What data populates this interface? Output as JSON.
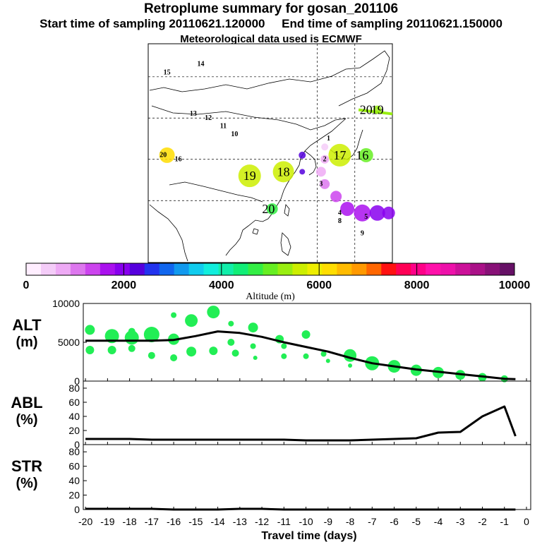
{
  "header": {
    "title": "Retroplume summary for gosan_201106",
    "start_time": "Start time of sampling 20110621.120000",
    "end_time": "End time of sampling 20110621.150000",
    "meteo": "Meteorological data used is ECMWF"
  },
  "colors": {
    "plume_green": "#22ee55",
    "line": "#000000",
    "gradient": [
      "#ffeeff",
      "#f4ccf8",
      "#eeaaf5",
      "#dd77ee",
      "#cc44ee",
      "#aa11ee",
      "#8800ee",
      "#5500dd",
      "#2233ee",
      "#1166ee",
      "#1199ee",
      "#11ccee",
      "#11eedd",
      "#11eeaa",
      "#11ee77",
      "#33ee44",
      "#66ee22",
      "#99ee11",
      "#ccee00",
      "#eeee00",
      "#ffdd00",
      "#ffbb00",
      "#ff9900",
      "#ff6600",
      "#ff1111",
      "#ff0055",
      "#ff0088",
      "#ff11aa",
      "#ee11aa",
      "#cc1199",
      "#aa1188",
      "#881177",
      "#661166"
    ]
  },
  "map": {
    "labels": [
      {
        "text": "14",
        "lon": 79,
        "lat": 53,
        "color": "#11cccc"
      },
      {
        "text": "15",
        "lon": 70,
        "lat": 51,
        "color": "#ffbb00"
      },
      {
        "text": "13",
        "lon": 77,
        "lat": 41,
        "color": "#11cccc"
      },
      {
        "text": "12",
        "lon": 81,
        "lat": 40,
        "color": "#11cccc"
      },
      {
        "text": "11",
        "lon": 85,
        "lat": 38,
        "color": "#11cccc"
      },
      {
        "text": "10",
        "lon": 88,
        "lat": 36,
        "color": "#1199ee"
      },
      {
        "text": "20",
        "lon": 69,
        "lat": 31,
        "color": "#ffdd00"
      },
      {
        "text": "16",
        "lon": 73,
        "lat": 30,
        "color": "#11eedd"
      },
      {
        "text": "20",
        "lon": 123,
        "lat": 42,
        "color": "#99ee11"
      },
      {
        "text": "19",
        "lon": 126,
        "lat": 42,
        "color": "#99ee11"
      },
      {
        "text": "17",
        "lon": 116,
        "lat": 31,
        "color": "#ccee00"
      },
      {
        "text": "16",
        "lon": 122,
        "lat": 31,
        "color": "#66ee22"
      },
      {
        "text": "19",
        "lon": 92,
        "lat": 26,
        "color": "#ccee00"
      },
      {
        "text": "18",
        "lon": 101,
        "lat": 27,
        "color": "#ccee00"
      },
      {
        "text": "20",
        "lon": 97,
        "lat": 18,
        "color": "#33ee44"
      },
      {
        "text": "4",
        "lon": 116,
        "lat": 17,
        "color": "#aa11ee"
      },
      {
        "text": "5",
        "lon": 123,
        "lat": 16,
        "color": "#8800ee"
      },
      {
        "text": "3",
        "lon": 111,
        "lat": 24,
        "color": "#eeaaf5"
      },
      {
        "text": "2",
        "lon": 112,
        "lat": 30,
        "color": "#eeaaf5"
      },
      {
        "text": "1",
        "lon": 113,
        "lat": 35,
        "color": "#f4ccf8"
      },
      {
        "text": "9",
        "lon": 122,
        "lat": 12,
        "color": "#5500dd"
      },
      {
        "text": "8",
        "lon": 116,
        "lat": 15,
        "color": "#5500dd"
      }
    ]
  },
  "colorbar": {
    "ticks": [
      "0",
      "2000",
      "4000",
      "6000",
      "8000",
      "10000"
    ],
    "label": "Altitude (m)"
  },
  "chart_data": [
    {
      "type": "line",
      "name": "ALT",
      "ylabel": [
        "ALT",
        "(m)"
      ],
      "yticks": [
        "10000",
        "5000",
        "0"
      ],
      "ylim": [
        0,
        10000
      ],
      "xlim": [
        -20,
        0
      ],
      "x": [
        -20,
        -19,
        -18,
        -17,
        -16,
        -15,
        -14,
        -13,
        -12,
        -11,
        -10,
        -9,
        -8,
        -7,
        -6,
        -5,
        -4,
        -3,
        -2,
        -1,
        -0.5
      ],
      "values": [
        5200,
        5200,
        5200,
        5200,
        5300,
        5800,
        6400,
        6200,
        5700,
        5000,
        4400,
        3800,
        3000,
        2300,
        1900,
        1500,
        1200,
        900,
        600,
        300,
        250
      ],
      "plume_points": [
        {
          "x": -19.8,
          "y": 6600,
          "s": 7
        },
        {
          "x": -19.8,
          "y": 4000,
          "s": 6
        },
        {
          "x": -18.8,
          "y": 5800,
          "s": 10
        },
        {
          "x": -18.8,
          "y": 4000,
          "s": 6
        },
        {
          "x": -17.9,
          "y": 5600,
          "s": 10
        },
        {
          "x": -17.9,
          "y": 6400,
          "s": 5
        },
        {
          "x": -17.9,
          "y": 4200,
          "s": 5
        },
        {
          "x": -17,
          "y": 6000,
          "s": 11
        },
        {
          "x": -17,
          "y": 3300,
          "s": 5
        },
        {
          "x": -16,
          "y": 5400,
          "s": 8
        },
        {
          "x": -16,
          "y": 3000,
          "s": 5
        },
        {
          "x": -16,
          "y": 8500,
          "s": 4
        },
        {
          "x": -15.2,
          "y": 7800,
          "s": 9
        },
        {
          "x": -15.2,
          "y": 3800,
          "s": 7
        },
        {
          "x": -14.2,
          "y": 8900,
          "s": 9
        },
        {
          "x": -14.2,
          "y": 3900,
          "s": 6
        },
        {
          "x": -13.4,
          "y": 5000,
          "s": 5
        },
        {
          "x": -13.4,
          "y": 7400,
          "s": 4
        },
        {
          "x": -13.2,
          "y": 3600,
          "s": 5
        },
        {
          "x": -12.4,
          "y": 6900,
          "s": 7
        },
        {
          "x": -12.4,
          "y": 4500,
          "s": 4
        },
        {
          "x": -12.3,
          "y": 3000,
          "s": 3
        },
        {
          "x": -11.2,
          "y": 5400,
          "s": 6
        },
        {
          "x": -11,
          "y": 4500,
          "s": 4
        },
        {
          "x": -11,
          "y": 3200,
          "s": 4
        },
        {
          "x": -10,
          "y": 6000,
          "s": 6
        },
        {
          "x": -10,
          "y": 3200,
          "s": 4
        },
        {
          "x": -9.2,
          "y": 3500,
          "s": 4
        },
        {
          "x": -9,
          "y": 2600,
          "s": 3
        },
        {
          "x": -8,
          "y": 3300,
          "s": 9
        },
        {
          "x": -8,
          "y": 2000,
          "s": 3
        },
        {
          "x": -7,
          "y": 2300,
          "s": 10
        },
        {
          "x": -6,
          "y": 1900,
          "s": 9
        },
        {
          "x": -5,
          "y": 1400,
          "s": 8
        },
        {
          "x": -4,
          "y": 1100,
          "s": 8
        },
        {
          "x": -3,
          "y": 800,
          "s": 7
        },
        {
          "x": -2,
          "y": 500,
          "s": 6
        },
        {
          "x": -1,
          "y": 300,
          "s": 5
        }
      ]
    },
    {
      "type": "line",
      "name": "ABL",
      "ylabel": [
        "ABL",
        "(%)"
      ],
      "yticks": [
        "80",
        "60",
        "40",
        "20",
        "0"
      ],
      "ylim": [
        0,
        90
      ],
      "xlim": [
        -20,
        0
      ],
      "x": [
        -20,
        -19,
        -18,
        -17,
        -16,
        -15,
        -14,
        -13,
        -12,
        -11,
        -10,
        -9,
        -8,
        -7,
        -6,
        -5,
        -4,
        -3,
        -2,
        -1,
        -0.5
      ],
      "values": [
        8,
        8,
        8,
        7,
        7,
        7,
        7,
        7,
        7,
        7,
        6,
        6,
        6,
        7,
        8,
        9,
        17,
        18,
        40,
        54,
        12
      ]
    },
    {
      "type": "line",
      "name": "STR",
      "ylabel": [
        "STR",
        "(%)"
      ],
      "yticks": [
        "80",
        "60",
        "40",
        "20",
        "0"
      ],
      "ylim": [
        0,
        90
      ],
      "xlim": [
        -20,
        0
      ],
      "xticks": [
        "-20",
        "-19",
        "-18",
        "-17",
        "-16",
        "-15",
        "-14",
        "-13",
        "-12",
        "-11",
        "-10",
        "-9",
        "-8",
        "-7",
        "-6",
        "-5",
        "-4",
        "-3",
        "-2",
        "-1",
        "0"
      ],
      "xlabel": "Travel time (days)",
      "x": [
        -20,
        -19,
        -18,
        -17,
        -16,
        -15,
        -14,
        -13,
        -12,
        -11,
        -10,
        -9,
        -8,
        -7,
        -6,
        -5,
        -4,
        -3,
        -2,
        -1,
        -0.5
      ],
      "values": [
        1,
        1,
        1,
        1,
        0,
        0,
        0,
        1,
        1,
        0,
        0,
        0,
        0,
        0,
        0,
        0,
        0,
        0,
        0,
        0,
        0
      ]
    }
  ]
}
